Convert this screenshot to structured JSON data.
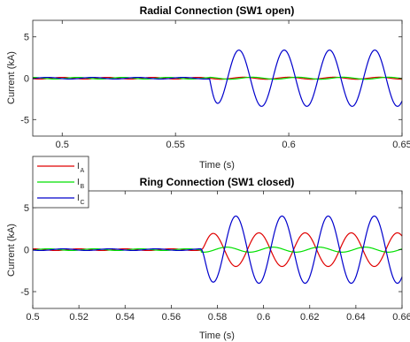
{
  "chart_data": [
    {
      "type": "line",
      "title": "Radial Connection (SW1 open)",
      "xlabel": "Time (s)",
      "ylabel": "Current (kA)",
      "xlim": [
        0.487,
        0.65
      ],
      "ylim": [
        -7,
        7
      ],
      "xticks": [
        0.5,
        0.55,
        0.6,
        0.65
      ],
      "xtick_labels": [
        "0.5",
        "0.55",
        "0.6",
        "0.65"
      ],
      "yticks": [
        5,
        0,
        -5
      ],
      "ytick_labels": [
        "5",
        "0",
        "-5"
      ],
      "grid": false,
      "fault_time": 0.565,
      "series": [
        {
          "name": "A",
          "color": "#e00000",
          "pre_amplitude": 0.1,
          "post_amplitude": 0.12
        },
        {
          "name": "B",
          "color": "#00e000",
          "pre_amplitude": 0.1,
          "post_amplitude": 0.12
        },
        {
          "name": "C",
          "color": "#0000cc",
          "pre_amplitude": 0.1,
          "post_amplitude": 3.4,
          "post_peak_times": [
            0.578,
            0.598,
            0.618,
            0.638
          ],
          "post_trough_times": [
            0.568,
            0.588,
            0.608,
            0.628,
            0.648
          ]
        }
      ]
    },
    {
      "type": "line",
      "title": "Ring Connection (SW1 closed)",
      "xlabel": "Time (s)",
      "ylabel": "Current (kA)",
      "xlim": [
        0.5,
        0.66
      ],
      "ylim": [
        -7,
        7
      ],
      "xticks": [
        0.5,
        0.52,
        0.54,
        0.56,
        0.58,
        0.6,
        0.62,
        0.64,
        0.66
      ],
      "xtick_labels": [
        "0.5",
        "0.52",
        "0.54",
        "0.56",
        "0.58",
        "0.6",
        "0.62",
        "0.64",
        "0.66"
      ],
      "yticks": [
        5,
        0,
        -5
      ],
      "ytick_labels": [
        "5",
        "0",
        "-5"
      ],
      "grid": false,
      "fault_time": 0.573,
      "series": [
        {
          "name": "A",
          "color": "#e00000",
          "pre_amplitude": 0.1,
          "post_amplitude": 2.0,
          "post_peak_times": [
            0.578,
            0.598,
            0.618,
            0.638,
            0.658
          ],
          "post_trough_times": [
            0.588,
            0.608,
            0.628,
            0.648
          ]
        },
        {
          "name": "B",
          "color": "#00e000",
          "pre_amplitude": 0.1,
          "post_amplitude": 0.3
        },
        {
          "name": "C",
          "color": "#0000cc",
          "pre_amplitude": 0.1,
          "post_amplitude": 4.0,
          "post_peak_times": [
            0.588,
            0.608,
            0.628,
            0.648
          ],
          "post_trough_times": [
            0.578,
            0.598,
            0.618,
            0.638,
            0.658
          ]
        }
      ]
    }
  ],
  "legend": {
    "placement": "between-plots-left",
    "entries": [
      {
        "symbol": "I",
        "sub": "A",
        "color": "#e00000"
      },
      {
        "symbol": "I",
        "sub": "B",
        "color": "#00e000"
      },
      {
        "symbol": "I",
        "sub": "C",
        "color": "#0000cc"
      }
    ]
  }
}
